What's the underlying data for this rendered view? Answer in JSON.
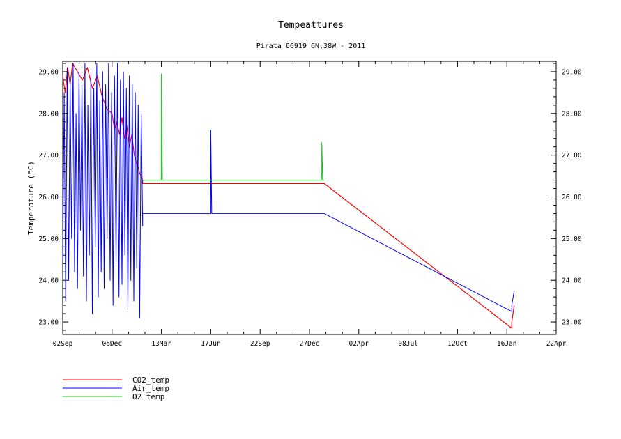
{
  "chart_data": {
    "type": "line",
    "title": "Tempeattures",
    "subtitle": "Pirata 66919 6N,38W - 2011",
    "ylabel": "Temperature (°C)",
    "xlabel": "",
    "x_ticks": [
      "02Sep",
      "06Dec",
      "13Mar",
      "17Jun",
      "22Sep",
      "27Dec",
      "02Apr",
      "08Jul",
      "12Oct",
      "16Jan",
      "22Apr"
    ],
    "y_ticks_left": [
      "23.00",
      "24.00",
      "25.00",
      "26.00",
      "27.00",
      "28.00",
      "29.00"
    ],
    "y_ticks_right": [
      "23.00",
      "24.00",
      "25.00",
      "26.00",
      "27.00",
      "28.00",
      "29.00"
    ],
    "ylim": [
      22.7,
      29.25
    ],
    "xlim": [
      0,
      10
    ],
    "grid": false,
    "legend_position": "bottom-left",
    "series": [
      {
        "name": "CO2_temp",
        "color": "#ff0000",
        "points": [
          [
            0.0,
            28.9
          ],
          [
            0.05,
            28.5
          ],
          [
            0.1,
            29.1
          ],
          [
            0.15,
            28.7
          ],
          [
            0.2,
            29.2
          ],
          [
            0.3,
            29.0
          ],
          [
            0.4,
            28.8
          ],
          [
            0.5,
            29.1
          ],
          [
            0.6,
            28.6
          ],
          [
            0.7,
            28.9
          ],
          [
            0.8,
            28.4
          ],
          [
            0.9,
            28.1
          ],
          [
            1.0,
            28.0
          ],
          [
            1.05,
            27.6
          ],
          [
            1.1,
            27.8
          ],
          [
            1.15,
            27.5
          ],
          [
            1.2,
            27.9
          ],
          [
            1.25,
            27.4
          ],
          [
            1.3,
            27.7
          ],
          [
            1.35,
            27.2
          ],
          [
            1.4,
            27.5
          ],
          [
            1.45,
            27.0
          ],
          [
            1.5,
            26.8
          ],
          [
            1.55,
            26.6
          ],
          [
            1.62,
            26.4
          ],
          [
            1.62,
            26.32
          ],
          [
            5.3,
            26.32
          ],
          [
            9.1,
            22.85
          ],
          [
            9.1,
            23.0
          ],
          [
            9.15,
            23.4
          ]
        ]
      },
      {
        "name": "Air_temp",
        "color": "#0000ff",
        "points": [
          [
            0.0,
            24.5
          ],
          [
            0.03,
            28.5
          ],
          [
            0.06,
            23.5
          ],
          [
            0.09,
            29.1
          ],
          [
            0.12,
            24.0
          ],
          [
            0.15,
            28.8
          ],
          [
            0.18,
            25.0
          ],
          [
            0.21,
            29.2
          ],
          [
            0.24,
            24.2
          ],
          [
            0.27,
            28.0
          ],
          [
            0.3,
            23.8
          ],
          [
            0.33,
            29.0
          ],
          [
            0.36,
            25.2
          ],
          [
            0.39,
            28.7
          ],
          [
            0.42,
            24.1
          ],
          [
            0.45,
            29.2
          ],
          [
            0.48,
            23.5
          ],
          [
            0.51,
            28.2
          ],
          [
            0.54,
            24.6
          ],
          [
            0.57,
            29.0
          ],
          [
            0.6,
            23.2
          ],
          [
            0.63,
            28.6
          ],
          [
            0.66,
            24.8
          ],
          [
            0.69,
            29.2
          ],
          [
            0.72,
            23.6
          ],
          [
            0.75,
            28.3
          ],
          [
            0.78,
            24.2
          ],
          [
            0.81,
            29.0
          ],
          [
            0.84,
            23.8
          ],
          [
            0.87,
            28.7
          ],
          [
            0.9,
            25.0
          ],
          [
            0.93,
            29.2
          ],
          [
            0.96,
            24.0
          ],
          [
            0.99,
            28.5
          ],
          [
            1.02,
            23.4
          ],
          [
            1.05,
            28.9
          ],
          [
            1.08,
            24.4
          ],
          [
            1.11,
            29.2
          ],
          [
            1.14,
            23.6
          ],
          [
            1.17,
            28.8
          ],
          [
            1.2,
            23.9
          ],
          [
            1.23,
            29.0
          ],
          [
            1.26,
            24.6
          ],
          [
            1.29,
            28.6
          ],
          [
            1.32,
            23.3
          ],
          [
            1.35,
            28.9
          ],
          [
            1.38,
            24.0
          ],
          [
            1.41,
            28.7
          ],
          [
            1.44,
            23.5
          ],
          [
            1.47,
            28.5
          ],
          [
            1.5,
            24.3
          ],
          [
            1.53,
            28.2
          ],
          [
            1.56,
            23.1
          ],
          [
            1.59,
            28.0
          ],
          [
            1.62,
            25.3
          ],
          [
            1.62,
            25.6
          ],
          [
            3.0,
            25.6
          ],
          [
            3.0,
            27.6
          ],
          [
            3.02,
            25.6
          ],
          [
            5.3,
            25.6
          ],
          [
            9.1,
            23.25
          ],
          [
            9.1,
            23.4
          ],
          [
            9.15,
            23.75
          ]
        ]
      },
      {
        "name": "O2_temp",
        "color": "#00cc00",
        "points": [
          [
            1.62,
            26.4
          ],
          [
            2.0,
            26.4
          ],
          [
            2.0,
            28.95
          ],
          [
            2.02,
            26.4
          ],
          [
            5.25,
            26.4
          ],
          [
            5.25,
            27.3
          ],
          [
            5.27,
            26.4
          ],
          [
            5.3,
            26.4
          ]
        ]
      }
    ]
  }
}
